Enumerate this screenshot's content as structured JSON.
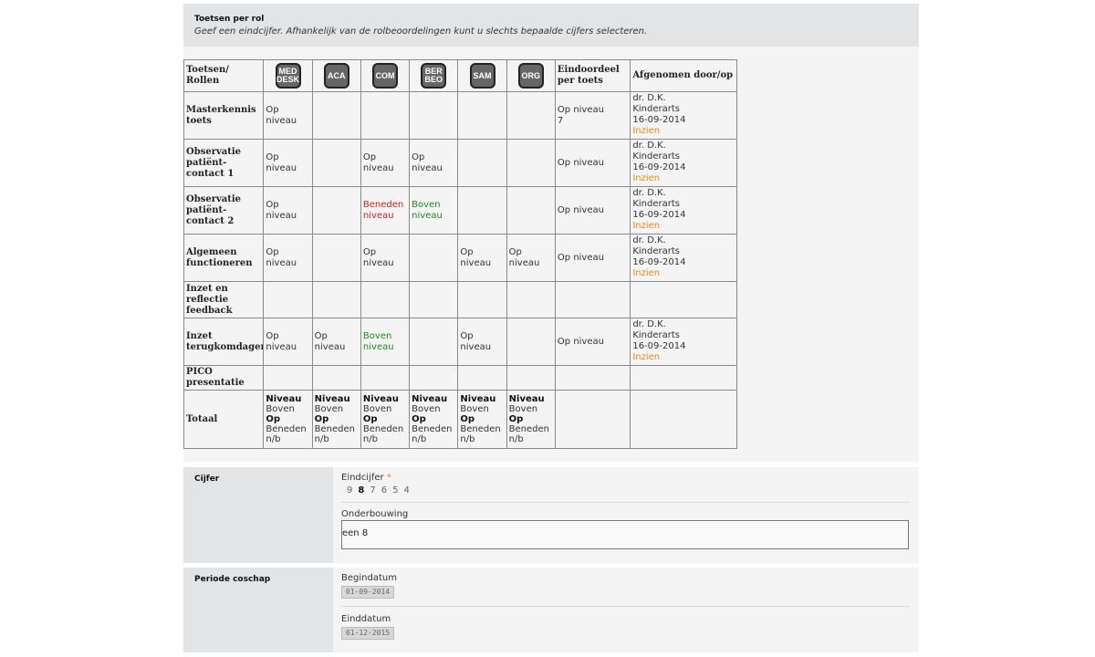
{
  "header": {
    "title": "Toetsen per rol",
    "subtitle": "Geef een eindcijfer. Afhankelijk van de rolbeoordelingen kunt u slechts bepaalde cijfers selecteren."
  },
  "table": {
    "corner_label": "Toetsen/\nRollen",
    "roles": [
      {
        "label": "MED\nDESK"
      },
      {
        "label": "ACA"
      },
      {
        "label": "COM"
      },
      {
        "label": "BER\nBEO"
      },
      {
        "label": "SAM"
      },
      {
        "label": "ORG"
      }
    ],
    "col_eindoordeel": "Eindoordeel\nper toets",
    "col_afgenomen": "Afgenomen door/op",
    "rows": [
      {
        "name": "Masterkennis\ntoets",
        "cells": [
          "Op niveau",
          "",
          "",
          "",
          "",
          ""
        ],
        "eind": "Op niveau\n7",
        "by": "dr. D.K.\nKinderarts\n16-09-2014",
        "link": "Inzien"
      },
      {
        "name": "Observatie\npatiënt-\ncontact 1",
        "cells": [
          "Op niveau",
          "",
          "Op niveau",
          "Op niveau",
          "",
          ""
        ],
        "eind": "Op niveau",
        "by": "dr. D.K.\nKinderarts\n16-09-2014",
        "link": "Inzien"
      },
      {
        "name": "Observatie\npatiënt-\ncontact 2",
        "cells": [
          "Op niveau",
          "",
          "Beneden\nniveau",
          "Boven\nniveau",
          "",
          ""
        ],
        "eind": "Op niveau",
        "by": "dr. D.K.\nKinderarts\n16-09-2014",
        "link": "Inzien"
      },
      {
        "name": "Algemeen\nfunctioneren",
        "cells": [
          "Op niveau",
          "",
          "Op niveau",
          "",
          "Op niveau",
          "Op niveau"
        ],
        "eind": "Op niveau",
        "by": "dr. D.K.\nKinderarts\n16-09-2014",
        "link": "Inzien"
      },
      {
        "name": "Inzet en\nreflectie\nfeedback",
        "cells": [
          "",
          "",
          "",
          "",
          "",
          ""
        ],
        "eind": "",
        "by": "",
        "link": ""
      },
      {
        "name": "Inzet\nterugkomdagen",
        "cells": [
          "Op niveau",
          "Op niveau",
          "Boven\nniveau",
          "",
          "Op niveau",
          ""
        ],
        "eind": "Op niveau",
        "by": "dr. D.K.\nKinderarts\n16-09-2014",
        "link": "Inzien"
      },
      {
        "name": "PICO\npresentatie",
        "cells": [
          "",
          "",
          "",
          "",
          "",
          ""
        ],
        "eind": "",
        "by": "",
        "link": ""
      }
    ],
    "total": {
      "name": "Totaal",
      "niveau": "Niveau",
      "boven": "Boven",
      "op": "Op",
      "beneden": "Beneden",
      "nb": "n/b"
    },
    "colors": {
      "below": "#d61f1f",
      "above": "#1f8a1f",
      "link": "#e58a1a"
    }
  },
  "cijfer": {
    "section_label": "Cijfer",
    "eindcijfer_label": "Eindcijfer",
    "required_mark": "*",
    "grades": [
      "9",
      "8",
      "7",
      "6",
      "5",
      "4"
    ],
    "selected": "8",
    "onderbouwing_label": "Onderbouwing",
    "onderbouwing_value": "een 8"
  },
  "periode": {
    "section_label": "Periode coschap",
    "begin_label": "Begindatum",
    "begin_value": "01-09-2014",
    "eind_label": "Einddatum",
    "eind_value": "01-12-2015"
  }
}
